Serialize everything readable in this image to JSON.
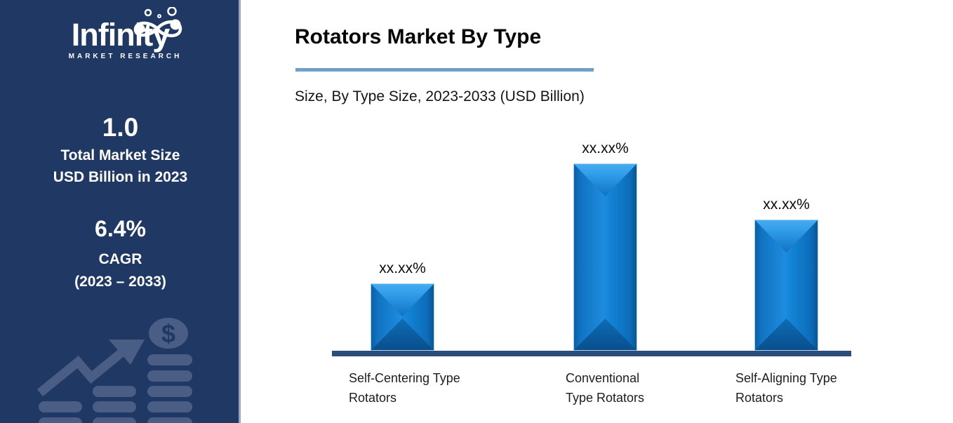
{
  "sidebar": {
    "background_color": "#203864",
    "graphic_color": "#4A5E85",
    "brand": "Infinity",
    "tagline": "MARKET RESEARCH",
    "total_market_size_value": "1.0",
    "total_market_size_line1": "Total Market Size",
    "total_market_size_line2": "USD Billion in 2023",
    "cagr_value": "6.4%",
    "cagr_label": "CAGR",
    "cagr_period": "(2023 – 2033)",
    "dollar_symbol": "$"
  },
  "header": {
    "title": "Rotators Market By Type",
    "subtitle": "Size, By Type Size, 2023-2033 (USD Billion)",
    "divider_color": "#6FA0C8"
  },
  "chart_data": {
    "type": "bar",
    "title": "Rotators Market By Type",
    "subtitle": "Size, By Type Size, 2023-2033 (USD Billion)",
    "categories": [
      "Self-Centering Type Rotators",
      "Conventional Type Rotators",
      "Self-Aligning Type Rotators"
    ],
    "values_masked": true,
    "bars": [
      {
        "category_lines": [
          "Self-Centering Type",
          "Rotators"
        ],
        "value_label": "xx.xx%",
        "relative_height": 0.36
      },
      {
        "category_lines": [
          "Conventional",
          "Type Rotators"
        ],
        "value_label": "xx.xx%",
        "relative_height": 1.0
      },
      {
        "category_lines": [
          "Self-Aligning Type",
          "Rotators"
        ],
        "value_label": "xx.xx%",
        "relative_height": 0.7
      }
    ],
    "bar_color": "#1180D8",
    "axis_color": "#2C4C7E",
    "gridlines": false,
    "legend": false,
    "y_axis_visible": false
  }
}
